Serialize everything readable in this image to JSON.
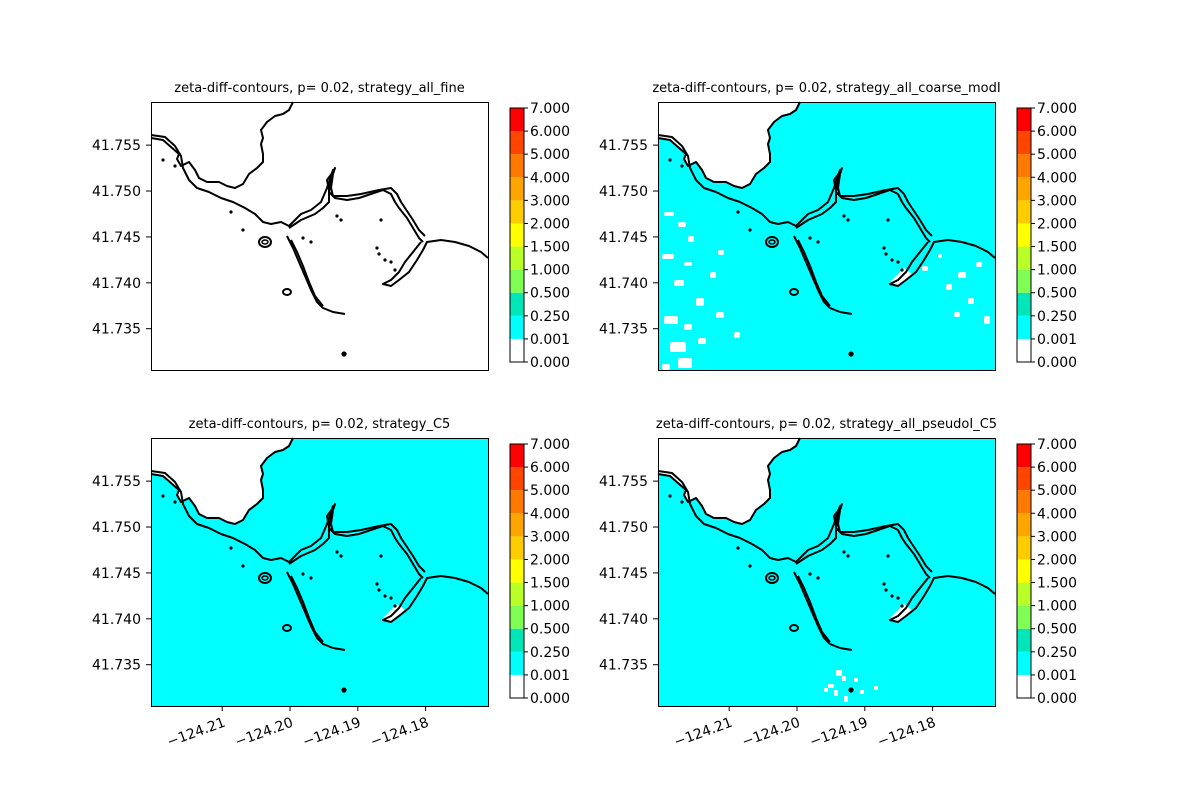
{
  "chart_data": [
    {
      "type": "contour",
      "title": "zeta-diff-contours, p= 0.02, strategy_all_fine",
      "fill_color": "#ffffff",
      "x_ticks": [],
      "y_ticks": [
        "41.755",
        "41.750",
        "41.745",
        "41.740",
        "41.735"
      ],
      "xlim": [
        -124.2205,
        -124.1708
      ],
      "ylim": [
        41.7305,
        41.7597
      ],
      "colorbar_ticks": [
        "7.000",
        "6.000",
        "5.000",
        "4.000",
        "3.000",
        "2.000",
        "1.500",
        "1.000",
        "0.500",
        "0.250",
        "0.001",
        "0.000"
      ]
    },
    {
      "type": "contour",
      "title": "zeta-diff-contours, p= 0.02, strategy_all_coarse_modI",
      "fill_color": "#00ffff",
      "x_ticks": [],
      "y_ticks": [
        "41.755",
        "41.750",
        "41.745",
        "41.740",
        "41.735"
      ],
      "xlim": [
        -124.2205,
        -124.1708
      ],
      "ylim": [
        41.7305,
        41.7597
      ],
      "colorbar_ticks": [
        "7.000",
        "6.000",
        "5.000",
        "4.000",
        "3.000",
        "2.000",
        "1.500",
        "1.000",
        "0.500",
        "0.250",
        "0.001",
        "0.000"
      ]
    },
    {
      "type": "contour",
      "title": "zeta-diff-contours, p= 0.02, strategy_C5",
      "fill_color": "#00ffff",
      "x_ticks": [
        "−124.21",
        "−124.20",
        "−124.19",
        "−124.18"
      ],
      "y_ticks": [
        "41.755",
        "41.750",
        "41.745",
        "41.740",
        "41.735"
      ],
      "xlim": [
        -124.2205,
        -124.1708
      ],
      "ylim": [
        41.7305,
        41.7597
      ],
      "colorbar_ticks": [
        "7.000",
        "6.000",
        "5.000",
        "4.000",
        "3.000",
        "2.000",
        "1.500",
        "1.000",
        "0.500",
        "0.250",
        "0.001",
        "0.000"
      ]
    },
    {
      "type": "contour",
      "title": "zeta-diff-contours, p= 0.02, strategy_all_pseudoI_C5",
      "fill_color": "#00ffff",
      "x_ticks": [
        "−124.21",
        "−124.20",
        "−124.19",
        "−124.18"
      ],
      "y_ticks": [
        "41.755",
        "41.750",
        "41.745",
        "41.740",
        "41.735"
      ],
      "xlim": [
        -124.2205,
        -124.1708
      ],
      "ylim": [
        41.7305,
        41.7597
      ],
      "colorbar_ticks": [
        "7.000",
        "6.000",
        "5.000",
        "4.000",
        "3.000",
        "2.000",
        "1.500",
        "1.000",
        "0.500",
        "0.250",
        "0.001",
        "0.000"
      ]
    }
  ],
  "colorbar": {
    "levels": [
      0,
      0.001,
      0.25,
      0.5,
      1.0,
      1.5,
      2.0,
      3.0,
      4.0,
      5.0,
      6.0,
      7.0
    ],
    "colors": [
      "#ffffff",
      "#00ffff",
      "#00e6b8",
      "#7fff55",
      "#b8ff28",
      "#ffff00",
      "#ffcc00",
      "#ffa500",
      "#ff7800",
      "#ff4500",
      "#ff0000"
    ]
  }
}
